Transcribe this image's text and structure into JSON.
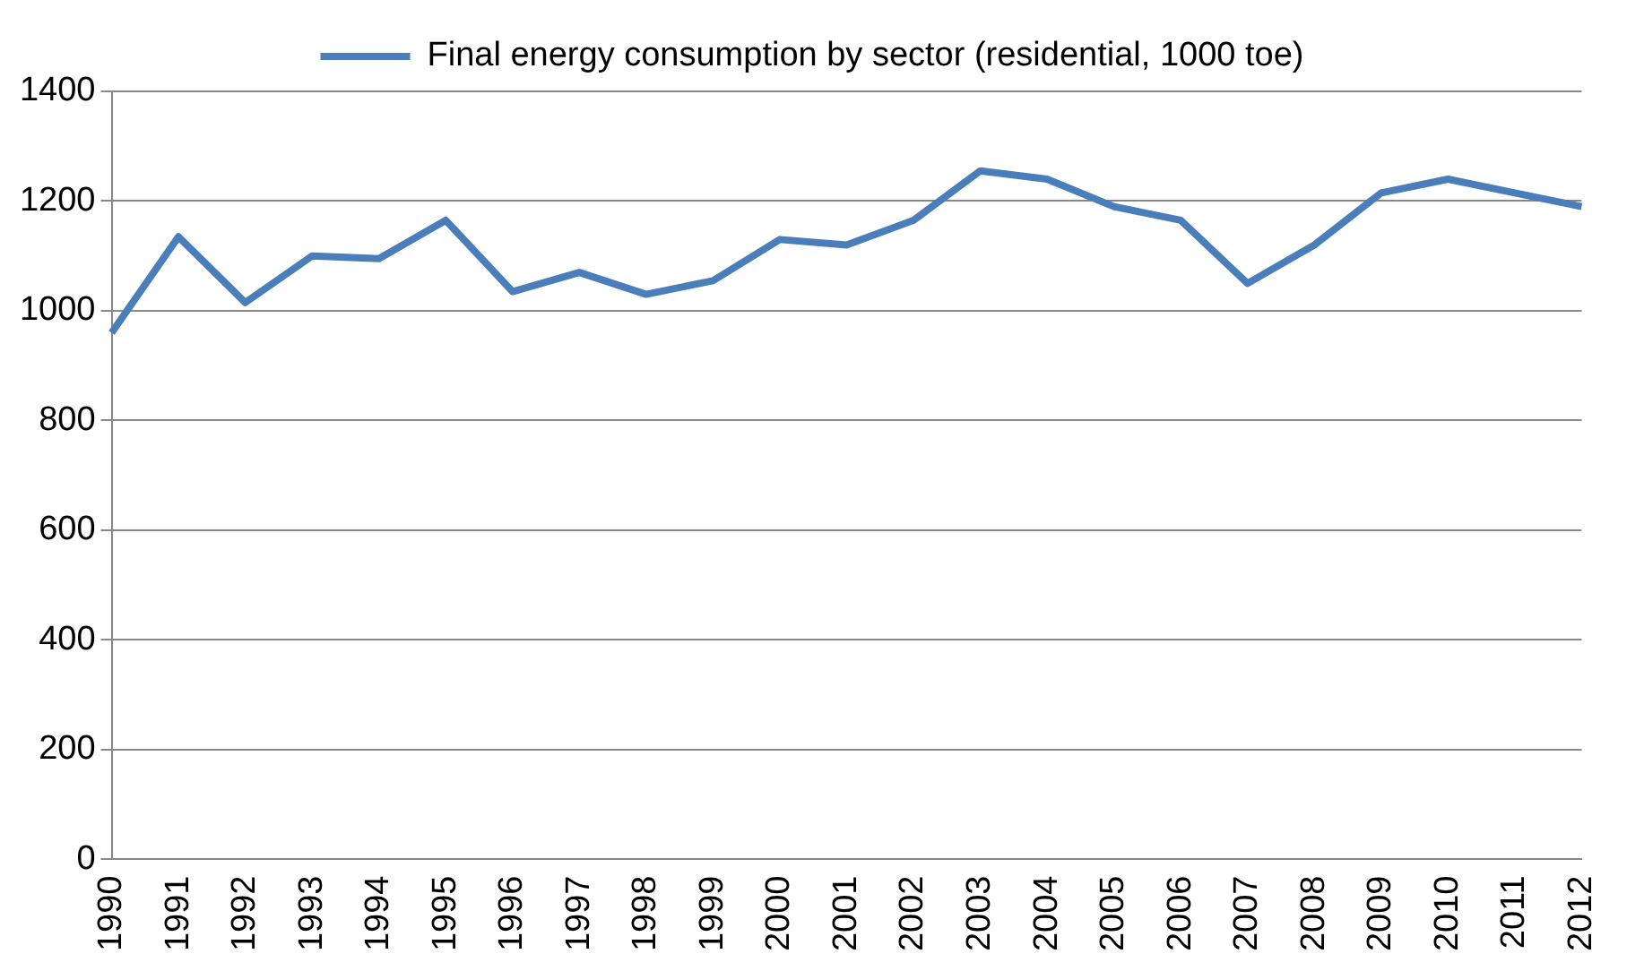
{
  "chart_data": {
    "type": "line",
    "categories": [
      "1990",
      "1991",
      "1992",
      "1993",
      "1994",
      "1995",
      "1996",
      "1997",
      "1998",
      "1999",
      "2000",
      "2001",
      "2002",
      "2003",
      "2004",
      "2005",
      "2006",
      "2007",
      "2008",
      "2009",
      "2010",
      "2011",
      "2012"
    ],
    "series": [
      {
        "name": "Final energy consumption by sector (residential, 1000 toe)",
        "color": "#4a7ebb",
        "values": [
          960,
          1135,
          1015,
          1100,
          1095,
          1165,
          1035,
          1070,
          1030,
          1055,
          1130,
          1120,
          1165,
          1255,
          1240,
          1190,
          1165,
          1050,
          1120,
          1215,
          1240,
          1215,
          1190
        ]
      }
    ],
    "ylim": [
      0,
      1400
    ],
    "yticks": [
      0,
      200,
      400,
      600,
      800,
      1000,
      1200,
      1400
    ],
    "grid": "y",
    "legend": "top",
    "marker": "none",
    "line_style": "solid"
  }
}
